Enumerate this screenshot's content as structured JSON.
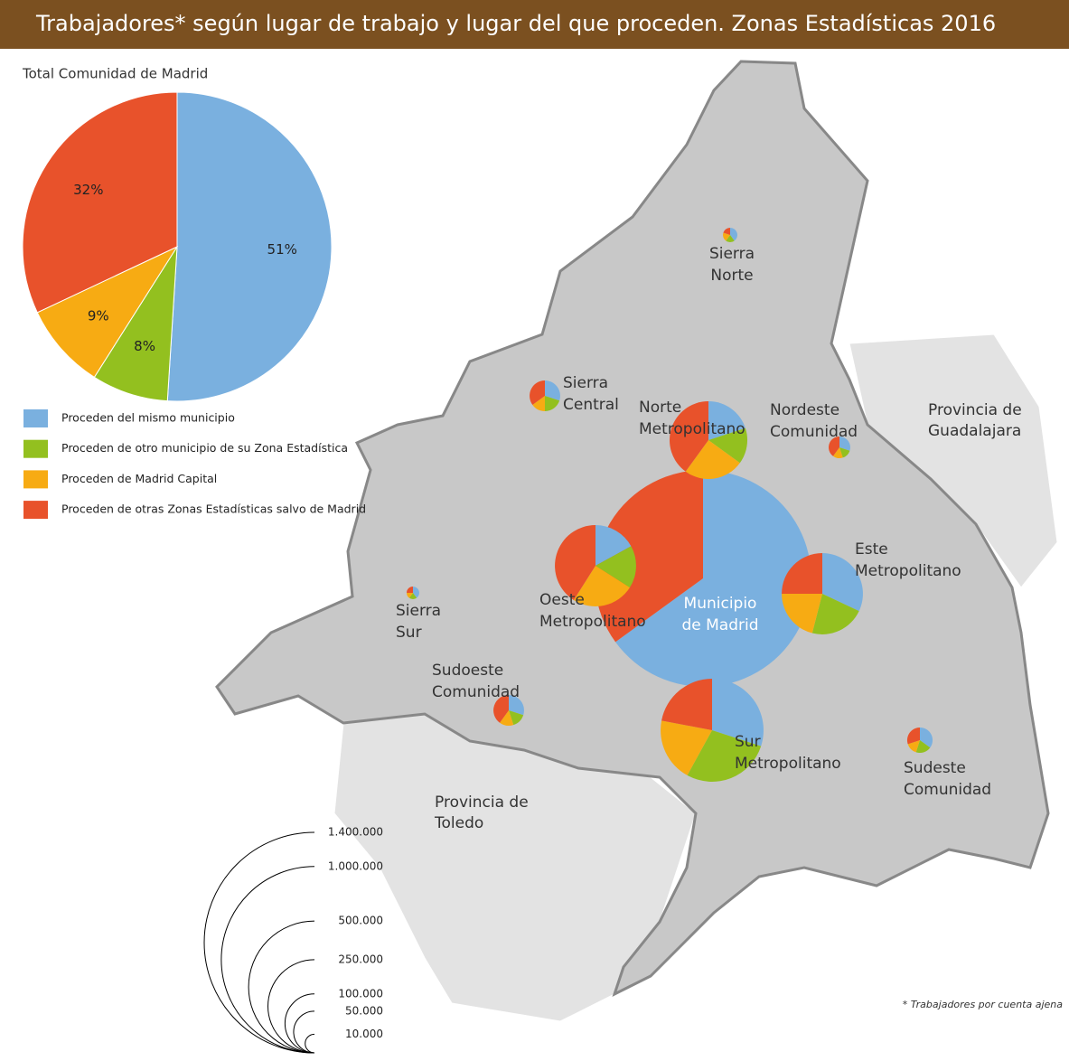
{
  "header": {
    "title": "Trabajadores* según lugar de trabajo y lugar del que proceden. Zonas Estadísticas 2016"
  },
  "chart_data": {
    "type": "pie",
    "title": "Total Comunidad de Madrid",
    "categories": [
      "Proceden del mismo municipio",
      "Proceden de otro municipio de su Zona Estadística",
      "Proceden de Madrid Capital",
      "Proceden de otras Zonas Estadísticas salvo de Madrid"
    ],
    "colors": [
      "#7ab0df",
      "#93c01f",
      "#f7ab13",
      "#e8522b"
    ],
    "values": [
      51,
      8,
      9,
      32
    ],
    "value_labels": [
      "51%",
      "8%",
      "9%",
      "32%"
    ]
  },
  "map": {
    "regions": [
      {
        "name": [
          "Provincia de",
          "Guadalajara"
        ]
      },
      {
        "name": [
          "Provincia de",
          "Toledo"
        ]
      }
    ],
    "zones": [
      {
        "name": [
          "Municipio",
          "de Madrid"
        ],
        "workers": 1350000,
        "shares": [
          65,
          0,
          0,
          35
        ]
      },
      {
        "name": [
          "Norte",
          "Metropolitano"
        ],
        "workers": 174000,
        "shares": [
          20,
          15,
          25,
          40
        ]
      },
      {
        "name": [
          "Oeste",
          "Metropolitano"
        ],
        "workers": 190000,
        "shares": [
          17,
          17,
          25,
          41
        ]
      },
      {
        "name": [
          "Este",
          "Metropolitano"
        ],
        "workers": 190000,
        "shares": [
          32,
          22,
          21,
          25
        ]
      },
      {
        "name": [
          "Sur",
          "Metropolitano"
        ],
        "workers": 305000,
        "shares": [
          30,
          28,
          20,
          22
        ]
      },
      {
        "name": [
          "Sierra",
          "Norte"
        ],
        "workers": 6000,
        "shares": [
          40,
          20,
          20,
          20
        ]
      },
      {
        "name": [
          "Sierra",
          "Central"
        ],
        "workers": 27000,
        "shares": [
          30,
          20,
          15,
          35
        ]
      },
      {
        "name": [
          "Nordeste",
          "Comunidad"
        ],
        "workers": 13500,
        "shares": [
          30,
          15,
          15,
          40
        ]
      },
      {
        "name": [
          "Sierra",
          "Sur"
        ],
        "workers": 4600,
        "shares": [
          40,
          20,
          15,
          25
        ]
      },
      {
        "name": [
          "Sudoeste",
          "Comunidad"
        ],
        "workers": 27000,
        "shares": [
          30,
          15,
          15,
          40
        ]
      },
      {
        "name": [
          "Sudeste",
          "Comunidad"
        ],
        "workers": 18500,
        "shares": [
          35,
          20,
          15,
          30
        ]
      }
    ],
    "size_ticks": [
      {
        "value": 1400000,
        "label": "1.400.000"
      },
      {
        "value": 1000000,
        "label": "1.000.000"
      },
      {
        "value": 500000,
        "label": "500.000"
      },
      {
        "value": 250000,
        "label": "250.000"
      },
      {
        "value": 100000,
        "label": "100.000"
      },
      {
        "value": 50000,
        "label": "50.000"
      },
      {
        "value": 10000,
        "label": "10.000"
      }
    ],
    "footnote": "* Trabajadores por cuenta ajena"
  }
}
